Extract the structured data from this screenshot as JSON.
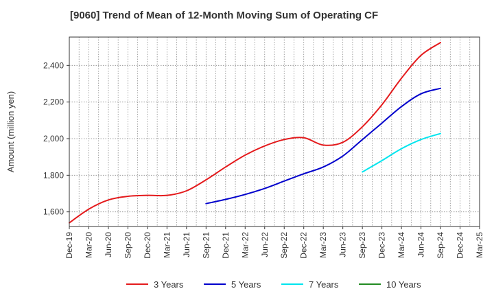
{
  "chart_data": {
    "type": "line",
    "title": "[9060]  Trend of Mean of 12-Month Moving Sum of Operating CF",
    "xlabel": "",
    "ylabel": "Amount (million yen)",
    "ylim": [
      1520,
      2555
    ],
    "yticks": [
      1600,
      1800,
      2000,
      2200,
      2400
    ],
    "ytick_labels": [
      "1,600",
      "1,800",
      "2,000",
      "2,200",
      "2,400"
    ],
    "categories": [
      "Dec-19",
      "Mar-20",
      "Jun-20",
      "Sep-20",
      "Dec-20",
      "Mar-21",
      "Jun-21",
      "Sep-21",
      "Dec-21",
      "Mar-22",
      "Jun-22",
      "Sep-22",
      "Dec-22",
      "Mar-23",
      "Jun-23",
      "Sep-23",
      "Dec-23",
      "Mar-24",
      "Jun-24",
      "Sep-24",
      "Dec-24",
      "Mar-25"
    ],
    "grid": true,
    "legend_position": "bottom",
    "series": [
      {
        "name": "3 Years",
        "color": "#e41a1c",
        "values": [
          1540,
          1615,
          1665,
          1685,
          1690,
          1690,
          1715,
          1775,
          1845,
          1910,
          1960,
          1995,
          2005,
          1965,
          1980,
          2065,
          2185,
          2330,
          2455,
          2525,
          null,
          null
        ]
      },
      {
        "name": "5 Years",
        "color": "#0000cc",
        "values": [
          null,
          null,
          null,
          null,
          null,
          null,
          null,
          1645,
          1668,
          1695,
          1728,
          1768,
          1808,
          1845,
          1905,
          1995,
          2085,
          2175,
          2245,
          2275,
          null,
          null
        ]
      },
      {
        "name": "7 Years",
        "color": "#00e5ee",
        "values": [
          null,
          null,
          null,
          null,
          null,
          null,
          null,
          null,
          null,
          null,
          null,
          null,
          null,
          null,
          null,
          1818,
          1880,
          1945,
          1995,
          2028,
          null,
          null
        ]
      },
      {
        "name": "10 Years",
        "color": "#228b22",
        "values": [
          null,
          null,
          null,
          null,
          null,
          null,
          null,
          null,
          null,
          null,
          null,
          null,
          null,
          null,
          null,
          null,
          null,
          null,
          null,
          null,
          null,
          null
        ]
      }
    ]
  }
}
